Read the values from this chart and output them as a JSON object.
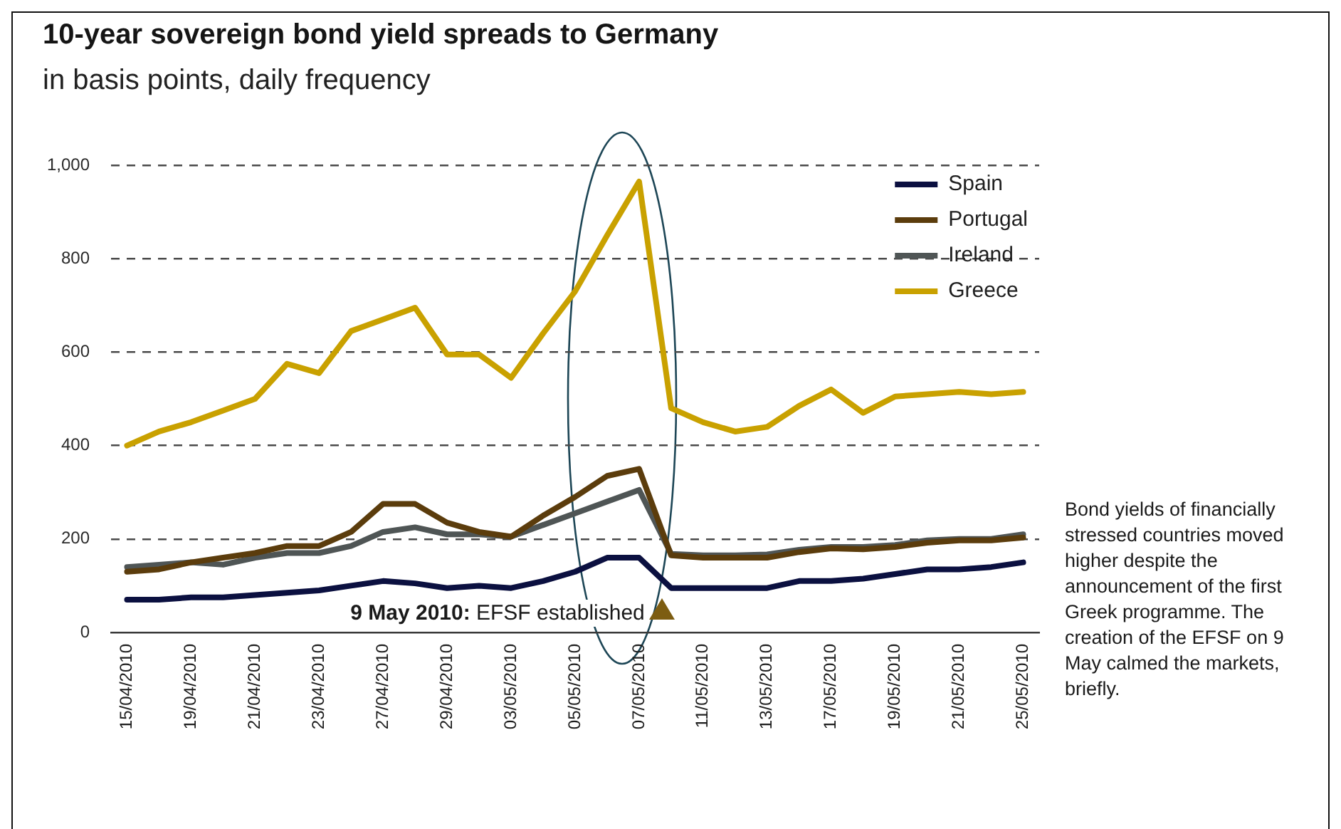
{
  "chart_data": {
    "type": "line",
    "title": "10-year sovereign bond yield spreads to Germany",
    "subtitle": "in basis points, daily frequency",
    "categories": [
      "15/04/2010",
      null,
      "19/04/2010",
      null,
      "21/04/2010",
      null,
      "23/04/2010",
      null,
      "27/04/2010",
      null,
      "29/04/2010",
      null,
      "03/05/2010",
      null,
      "05/05/2010",
      null,
      "07/05/2010",
      null,
      "11/05/2010",
      null,
      "13/05/2010",
      null,
      "17/05/2010",
      null,
      "19/05/2010",
      null,
      "21/05/2010",
      null,
      "25/05/2010"
    ],
    "series": [
      {
        "name": "Spain",
        "color": "#0b1040",
        "values": [
          70,
          70,
          75,
          75,
          80,
          85,
          90,
          100,
          110,
          105,
          95,
          100,
          95,
          110,
          130,
          160,
          160,
          95,
          95,
          95,
          95,
          110,
          110,
          115,
          125,
          135,
          135,
          140,
          150
        ]
      },
      {
        "name": "Portugal",
        "color": "#5b3c0c",
        "values": [
          130,
          135,
          150,
          160,
          170,
          185,
          185,
          215,
          275,
          275,
          235,
          215,
          205,
          250,
          290,
          335,
          350,
          165,
          160,
          160,
          160,
          172,
          180,
          178,
          183,
          192,
          197,
          197,
          203
        ]
      },
      {
        "name": "Ireland",
        "color": "#4f5555",
        "values": [
          140,
          145,
          150,
          145,
          160,
          170,
          170,
          185,
          215,
          225,
          210,
          210,
          205,
          230,
          255,
          280,
          305,
          168,
          165,
          165,
          167,
          177,
          183,
          183,
          187,
          197,
          200,
          200,
          210
        ]
      },
      {
        "name": "Greece",
        "color": "#c9a100",
        "values": [
          400,
          430,
          450,
          475,
          500,
          575,
          555,
          645,
          670,
          695,
          595,
          595,
          545,
          640,
          730,
          850,
          965,
          480,
          450,
          430,
          440,
          485,
          520,
          470,
          505,
          510,
          515,
          510,
          515
        ]
      }
    ],
    "ylim": [
      0,
      1000
    ],
    "yticks": [
      0,
      200,
      400,
      600,
      800,
      {
        "value": 1000,
        "label": "1,000"
      }
    ],
    "grid": "y",
    "legend": "top right",
    "marker": "none",
    "line_style": "solid",
    "annotations": [
      "9 May 2010: EFSF established",
      "Bond yields of financially stressed countries moved higher despite the announcement of the first Greek programme. The creation of the EFSF on 9 May calmed the markets, briefly."
    ]
  }
}
